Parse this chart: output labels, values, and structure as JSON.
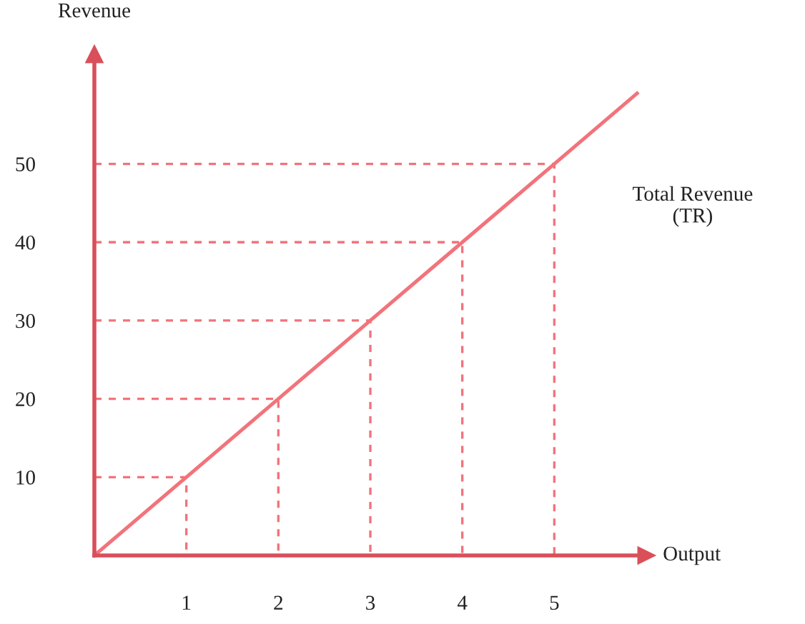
{
  "chart_data": {
    "type": "line",
    "xlabel": "Output",
    "ylabel": "Revenue",
    "xlim": [
      0,
      6
    ],
    "ylim": [
      0,
      64
    ],
    "xticks": [
      1,
      2,
      3,
      4,
      5
    ],
    "yticks": [
      10,
      20,
      30,
      40,
      50
    ],
    "grid": false,
    "legend": false,
    "marker": "none",
    "series": [
      {
        "name": "Total Revenue\n(TR)",
        "color": "#f2737b",
        "x": [
          0,
          1,
          2,
          3,
          4,
          5,
          5.9
        ],
        "values": [
          0,
          10,
          20,
          30,
          40,
          50,
          59
        ],
        "line_style": "solid"
      },
      {
        "color": "#f2737b",
        "x": [
          0,
          1,
          1
        ],
        "values": [
          10,
          10,
          0
        ],
        "line_style": "dashed"
      },
      {
        "color": "#f2737b",
        "x": [
          0,
          2,
          2
        ],
        "values": [
          20,
          20,
          0
        ],
        "line_style": "dashed"
      },
      {
        "color": "#f2737b",
        "x": [
          0,
          3,
          3
        ],
        "values": [
          30,
          30,
          0
        ],
        "line_style": "dashed"
      },
      {
        "color": "#f2737b",
        "x": [
          0,
          4,
          4
        ],
        "values": [
          40,
          40,
          0
        ],
        "line_style": "dashed"
      },
      {
        "color": "#f2737b",
        "x": [
          0,
          5,
          5
        ],
        "values": [
          50,
          50,
          0
        ],
        "line_style": "dashed"
      }
    ]
  }
}
